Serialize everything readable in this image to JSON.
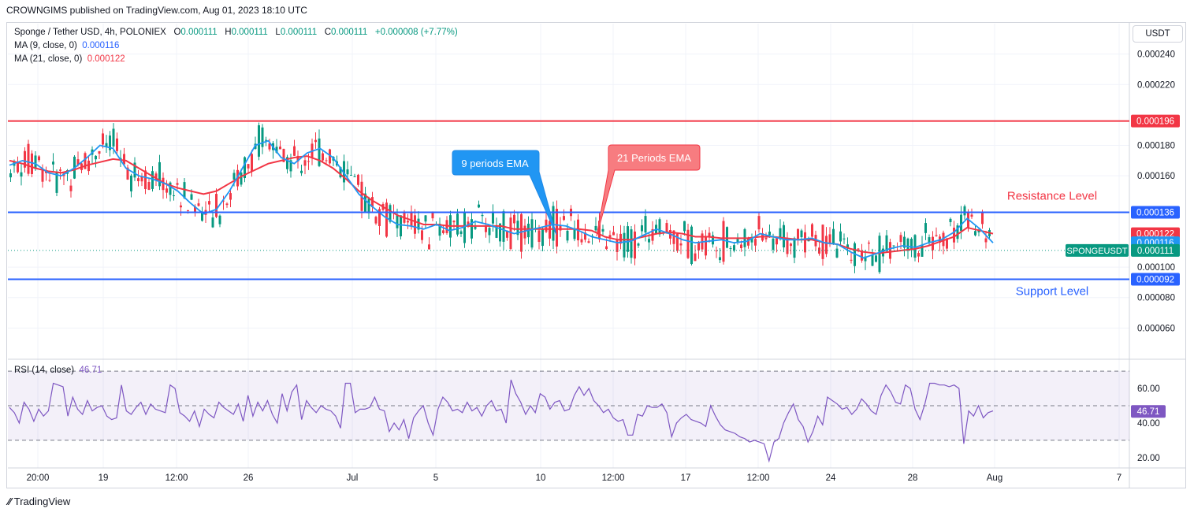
{
  "header": {
    "published": "CROWNGIMS published on TradingView.com, Aug 01, 2023 18:10 UTC"
  },
  "legend": {
    "symbol": "Sponge / Tether USD, 4h, POLONIEX",
    "o_label": "O",
    "o_val": "0.000111",
    "h_label": "H",
    "h_val": "0.000111",
    "l_label": "L",
    "l_val": "0.000111",
    "c_label": "C",
    "c_val": "0.000111",
    "chg": "+0.000008 (+7.77%)",
    "ma9_label": "MA (9, close, 0)",
    "ma9_val": "0.000116",
    "ma21_label": "MA (21, close, 0)",
    "ma21_val": "0.000122",
    "rsi_label": "RSI (14, close)",
    "rsi_val": "46.71"
  },
  "currency": "USDT",
  "footer": {
    "brand": "TradingView"
  },
  "colors": {
    "up": "#089981",
    "down": "#f23645",
    "ema9": "#2196f3",
    "ema21": "#f23645",
    "level": "#2962ff",
    "resistance_line": "#f23645",
    "rsi": "#7e57c2"
  },
  "chart_data": [
    {
      "type": "candlestick",
      "title": "Sponge / Tether USD, 4h, POLONIEX",
      "ylim": [
        4e-05,
        0.00026
      ],
      "y_ticks": [
        "0.000240",
        "0.000220",
        "0.000180",
        "0.000160",
        "0.000100",
        "0.000080",
        "0.000060"
      ],
      "x_ticks": [
        "20:00",
        "19",
        "12:00",
        "26",
        "Jul",
        "5",
        "10",
        "12:00",
        "17",
        "12:00",
        "24",
        "28",
        "Aug",
        "7"
      ],
      "x_range": [
        "Jun 18 20:00",
        "Aug 7"
      ],
      "levels": [
        {
          "label": "",
          "value": 0.000196,
          "badge": "0.000196",
          "color": "#f23645"
        },
        {
          "label": "Resistance Level",
          "value": 0.000136,
          "badge": "0.000136",
          "color": "#2962ff"
        },
        {
          "label": "Support Level",
          "value": 9.2e-05,
          "badge": "0.000092",
          "color": "#2962ff"
        }
      ],
      "price_badges": [
        {
          "text": "0.000122",
          "value": 0.000122,
          "color": "#f23645"
        },
        {
          "text": "0.000116",
          "value": 0.000116,
          "color": "#2196f3"
        },
        {
          "text": "0.000111",
          "value": 0.000111,
          "color": "#089981",
          "tag": "SPONGEUSDT"
        }
      ],
      "annotations": [
        {
          "text": "9 periods EMA",
          "color": "#2196f3"
        },
        {
          "text": "21 Periods EMA",
          "color": "#f23645"
        }
      ],
      "series": [
        {
          "name": "MA (9, close, 0)",
          "values": [
            0.000167,
            0.00017,
            0.000168,
            0.000162,
            0.00016,
            0.000165,
            0.000172,
            0.00018,
            0.000178,
            0.000165,
            0.00016,
            0.000158,
            0.000155,
            0.00015,
            0.000142,
            0.000135,
            0.000138,
            0.00015,
            0.000165,
            0.00018,
            0.000183,
            0.000172,
            0.000168,
            0.000175,
            0.000178,
            0.000172,
            0.00016,
            0.000148,
            0.00014,
            0.000133,
            0.000128,
            0.000127,
            0.000125,
            0.000128,
            0.000124,
            0.000126,
            0.00013,
            0.000128,
            0.000125,
            0.000122,
            0.000124,
            0.000126,
            0.000128,
            0.000127,
            0.000124,
            0.00012,
            0.000118,
            0.000116,
            0.000117,
            0.000121,
            0.000125,
            0.000122,
            0.000118,
            0.000116,
            0.000117,
            0.000118,
            0.000116,
            0.000117,
            0.000122,
            0.00012,
            0.000118,
            0.000118,
            0.000119,
            0.000116,
            0.000115,
            0.00011,
            0.000106,
            0.000109,
            0.000112,
            0.000114,
            0.000113,
            0.000116,
            0.000118,
            0.000123,
            0.000132,
            0.000125,
            0.000116
          ]
        },
        {
          "name": "MA (21, close, 0)",
          "values": [
            0.00017,
            0.000168,
            0.000165,
            0.000163,
            0.000162,
            0.000164,
            0.000167,
            0.000169,
            0.000171,
            0.00017,
            0.000165,
            0.00016,
            0.000155,
            0.000152,
            0.00015,
            0.000148,
            0.00015,
            0.000155,
            0.00016,
            0.000164,
            0.000168,
            0.00017,
            0.000172,
            0.000173,
            0.00017,
            0.000165,
            0.000158,
            0.00015,
            0.000144,
            0.000139,
            0.000134,
            0.000131,
            0.000128,
            0.000128,
            0.000127,
            0.000127,
            0.000127,
            0.000127,
            0.000127,
            0.000125,
            0.000125,
            0.000125,
            0.000125,
            0.000125,
            0.000125,
            0.000124,
            0.00012,
            0.000118,
            0.000118,
            0.00012,
            0.000122,
            0.000123,
            0.000122,
            0.00012,
            0.00012,
            0.000119,
            0.000119,
            0.000119,
            0.00012,
            0.00012,
            0.000119,
            0.000118,
            0.000118,
            0.000116,
            0.000115,
            0.000112,
            0.00011,
            0.000109,
            0.00011,
            0.000111,
            0.000112,
            0.000114,
            0.000117,
            0.00012,
            0.000126,
            0.000124,
            0.000122
          ]
        }
      ]
    },
    {
      "type": "line",
      "title": "RSI (14, close)",
      "ylim": [
        14,
        76
      ],
      "y_ticks": [
        "60.00",
        "40.00",
        "20.00"
      ],
      "bands": {
        "upper": 70,
        "middle": 50,
        "lower": 30
      },
      "last_value_badge": "46.71",
      "series": [
        {
          "name": "RSI (14, close)",
          "values": [
            49,
            46,
            40,
            52,
            48,
            41,
            48,
            44,
            47,
            63,
            62,
            61,
            44,
            55,
            48,
            45,
            53,
            47,
            49,
            50,
            44,
            42,
            43,
            62,
            47,
            45,
            49,
            52,
            45,
            51,
            48,
            47,
            46,
            62,
            60,
            46,
            44,
            41,
            47,
            38,
            48,
            45,
            43,
            52,
            49,
            47,
            45,
            51,
            41,
            56,
            44,
            52,
            47,
            53,
            45,
            40,
            57,
            47,
            58,
            62,
            42,
            53,
            49,
            46,
            50,
            48,
            47,
            44,
            37,
            63,
            63,
            46,
            48,
            48,
            49,
            55,
            48,
            47,
            35,
            40,
            36,
            42,
            31,
            43,
            47,
            50,
            40,
            33,
            48,
            55,
            52,
            47,
            48,
            46,
            52,
            47,
            49,
            44,
            50,
            53,
            47,
            48,
            40,
            65,
            57,
            52,
            45,
            50,
            46,
            57,
            55,
            48,
            52,
            53,
            47,
            48,
            56,
            61,
            56,
            60,
            53,
            50,
            46,
            48,
            43,
            41,
            42,
            33,
            33,
            45,
            44,
            50,
            49,
            49,
            51,
            46,
            32,
            40,
            43,
            45,
            42,
            41,
            40,
            38,
            50,
            44,
            39,
            36,
            35,
            34,
            32,
            31,
            29,
            30,
            29,
            28,
            18,
            29,
            31,
            40,
            46,
            51,
            42,
            38,
            29,
            35,
            44,
            39,
            55,
            53,
            51,
            48,
            49,
            45,
            48,
            54,
            51,
            47,
            45,
            56,
            62,
            58,
            52,
            51,
            62,
            60,
            48,
            42,
            51,
            63,
            63,
            62,
            62,
            61,
            62,
            60,
            28,
            47,
            44,
            50,
            43,
            46,
            47
          ]
        }
      ]
    }
  ]
}
